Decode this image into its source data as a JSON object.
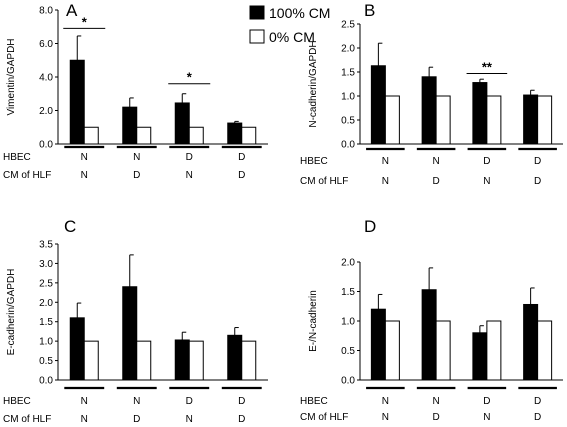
{
  "legend": [
    {
      "label": "100% CM",
      "color": "#000000"
    },
    {
      "label": "0% CM",
      "color": "#ffffff"
    }
  ],
  "row_labels": {
    "hbec": "HBEC",
    "cm": "CM of HLF"
  },
  "chart_data": [
    {
      "type": "bar",
      "panel": "A",
      "ylabel": "Vimentin/GAPDH",
      "ylim": [
        0,
        8.0
      ],
      "yticks": [
        "0.0",
        "2.0",
        "4.0",
        "6.0",
        "8.0"
      ],
      "ytick_values": [
        0,
        2,
        4,
        6,
        8
      ],
      "groups": [
        {
          "hbec": "N",
          "cm": "N"
        },
        {
          "hbec": "N",
          "cm": "D"
        },
        {
          "hbec": "D",
          "cm": "N"
        },
        {
          "hbec": "D",
          "cm": "D"
        }
      ],
      "series": [
        {
          "name": "100% CM",
          "values": [
            5.0,
            2.2,
            2.45,
            1.25
          ],
          "errors": [
            1.45,
            0.55,
            0.55,
            0.1
          ]
        },
        {
          "name": "0% CM",
          "values": [
            1.0,
            1.0,
            1.0,
            1.0
          ],
          "errors": [
            0,
            0,
            0,
            0
          ]
        }
      ],
      "significance": [
        {
          "group": 0,
          "label": "*",
          "level": 6.9
        },
        {
          "group": 2,
          "label": "*",
          "level": 3.6
        }
      ]
    },
    {
      "type": "bar",
      "panel": "B",
      "ylabel": "N-cadherin/GAPDH",
      "ylim": [
        0,
        2.5
      ],
      "yticks": [
        "0.0",
        "0.5",
        "1.0",
        "1.5",
        "2.0",
        "2.5"
      ],
      "ytick_values": [
        0,
        0.5,
        1.0,
        1.5,
        2.0,
        2.5
      ],
      "groups": [
        {
          "hbec": "N",
          "cm": "N"
        },
        {
          "hbec": "N",
          "cm": "D"
        },
        {
          "hbec": "D",
          "cm": "N"
        },
        {
          "hbec": "D",
          "cm": "D"
        }
      ],
      "series": [
        {
          "name": "100% CM",
          "values": [
            1.63,
            1.4,
            1.28,
            1.02
          ],
          "errors": [
            0.47,
            0.2,
            0.07,
            0.1
          ]
        },
        {
          "name": "0% CM",
          "values": [
            1.0,
            1.0,
            1.0,
            1.0
          ],
          "errors": [
            0,
            0,
            0,
            0
          ]
        }
      ],
      "significance": [
        {
          "group": 2,
          "label": "**",
          "level": 1.47
        }
      ]
    },
    {
      "type": "bar",
      "panel": "C",
      "ylabel": "E-cadherin/GAPDH",
      "ylim": [
        0,
        3.5
      ],
      "yticks": [
        "0.0",
        "0.5",
        "1.0",
        "1.5",
        "2.0",
        "2.5",
        "3.0",
        "3.5"
      ],
      "ytick_values": [
        0,
        0.5,
        1.0,
        1.5,
        2.0,
        2.5,
        3.0,
        3.5
      ],
      "groups": [
        {
          "hbec": "N",
          "cm": "N"
        },
        {
          "hbec": "N",
          "cm": "D"
        },
        {
          "hbec": "D",
          "cm": "N"
        },
        {
          "hbec": "D",
          "cm": "D"
        }
      ],
      "series": [
        {
          "name": "100% CM",
          "values": [
            1.6,
            2.4,
            1.03,
            1.15
          ],
          "errors": [
            0.38,
            0.82,
            0.2,
            0.2
          ]
        },
        {
          "name": "0% CM",
          "values": [
            1.0,
            1.0,
            1.0,
            1.0
          ],
          "errors": [
            0,
            0,
            0,
            0
          ]
        }
      ],
      "significance": []
    },
    {
      "type": "bar",
      "panel": "D",
      "ylabel": "E-/N-cadherin",
      "ylim": [
        0,
        2.0
      ],
      "yticks": [
        "0.0",
        "0.5",
        "1.0",
        "1.5",
        "2.0"
      ],
      "ytick_values": [
        0,
        0.5,
        1.0,
        1.5,
        2.0
      ],
      "groups": [
        {
          "hbec": "N",
          "cm": "N"
        },
        {
          "hbec": "N",
          "cm": "D"
        },
        {
          "hbec": "D",
          "cm": "N"
        },
        {
          "hbec": "D",
          "cm": "D"
        }
      ],
      "series": [
        {
          "name": "100% CM",
          "values": [
            1.2,
            1.53,
            0.8,
            1.28
          ],
          "errors": [
            0.25,
            0.37,
            0.12,
            0.28
          ]
        },
        {
          "name": "0% CM",
          "values": [
            1.0,
            1.0,
            1.0,
            1.0
          ],
          "errors": [
            0,
            0,
            0,
            0
          ]
        }
      ],
      "significance": []
    }
  ]
}
